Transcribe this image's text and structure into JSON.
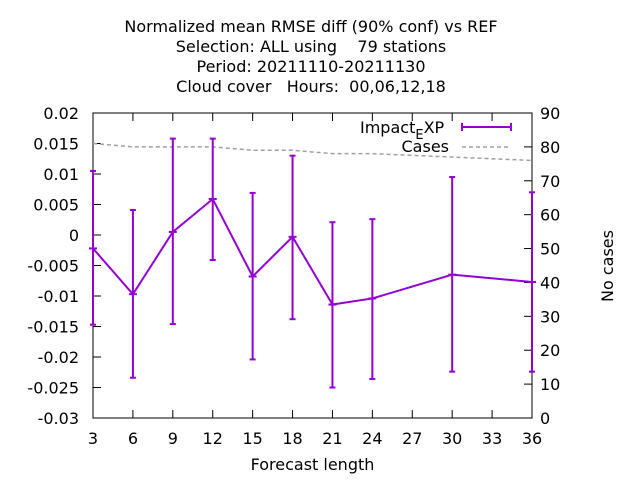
{
  "chart_data": {
    "type": "line",
    "title_lines": [
      "Normalized mean RMSE diff (90% conf) vs REF",
      "Selection: ALL using    79 stations",
      "Period: 20211110-20211130",
      "Cloud cover   Hours:  00,06,12,18"
    ],
    "xlabel": "Forecast length",
    "ylabel": "",
    "y2label": "No cases",
    "xlim": [
      3,
      36
    ],
    "ylim": [
      -0.03,
      0.02
    ],
    "y2lim": [
      0,
      90
    ],
    "x_ticks": [
      "3",
      "6",
      "9",
      "12",
      "15",
      "18",
      "21",
      "24",
      "27",
      "30",
      "33",
      "36"
    ],
    "y_ticks": [
      "0.02",
      "0.015",
      "0.01",
      "0.005",
      "0",
      "-0.005",
      "-0.01",
      "-0.015",
      "-0.02",
      "-0.025",
      "-0.03"
    ],
    "y2_ticks": [
      "90",
      "80",
      "70",
      "60",
      "50",
      "40",
      "30",
      "20",
      "10",
      "0"
    ],
    "legend_position": "top-right",
    "grid": false,
    "series": [
      {
        "name": "Impact_XP",
        "legend_label": {
          "main": "Impact",
          "sub": "E",
          "tail": "XP"
        },
        "color": "#9400d3",
        "axis": "y",
        "x": [
          3,
          6,
          9,
          12,
          15,
          18,
          21,
          24,
          30,
          36
        ],
        "values": [
          -0.0022,
          -0.0097,
          0.0005,
          0.0059,
          -0.0068,
          -0.0003,
          -0.0114,
          -0.0104,
          -0.0065,
          -0.0077
        ],
        "err_low": [
          -0.0147,
          -0.0234,
          -0.0146,
          -0.0041,
          -0.0204,
          -0.0138,
          -0.025,
          -0.0236,
          -0.0224,
          -0.0224
        ],
        "err_high": [
          0.0105,
          0.0041,
          0.0158,
          0.0158,
          0.0069,
          0.013,
          0.0021,
          0.0026,
          0.0095,
          0.007
        ]
      },
      {
        "name": "Cases",
        "color": "#a0a0a0",
        "axis": "y2",
        "dashed": true,
        "x": [
          3,
          6,
          9,
          12,
          15,
          18,
          21,
          24,
          30,
          36
        ],
        "values": [
          81,
          80,
          80,
          80,
          79,
          79,
          78,
          78,
          77,
          76
        ]
      }
    ]
  }
}
